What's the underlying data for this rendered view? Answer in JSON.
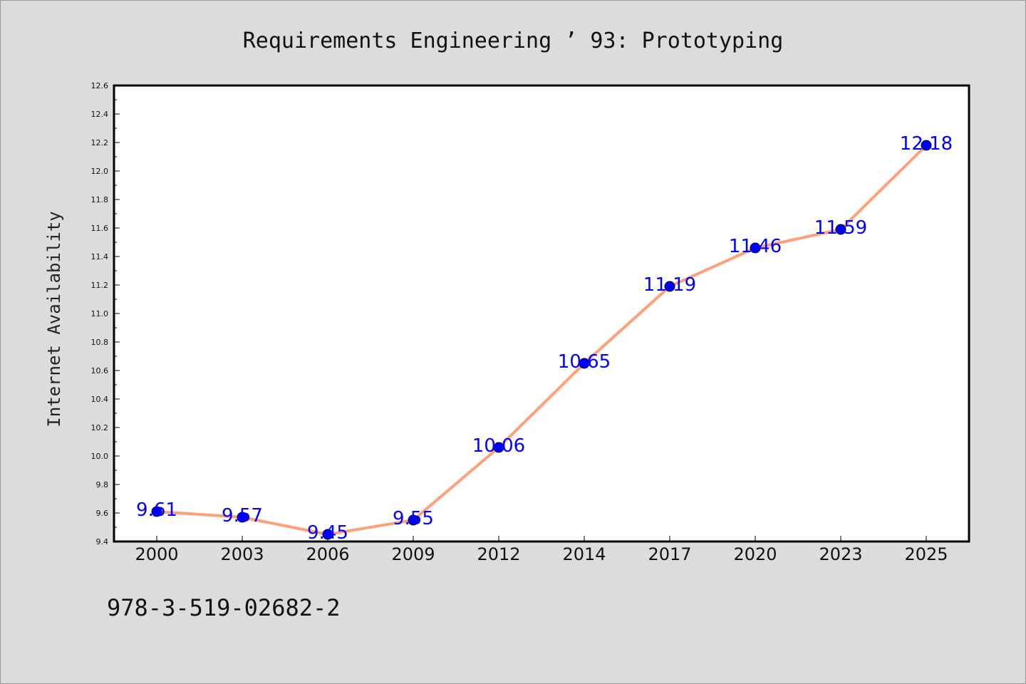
{
  "chart_data": {
    "type": "line",
    "title": "Requirements Engineering ’ 93: Prototyping",
    "xlabel": "",
    "ylabel": "Internet Availability",
    "categories": [
      "2000",
      "2003",
      "2006",
      "2009",
      "2012",
      "2014",
      "2017",
      "2020",
      "2023",
      "2025"
    ],
    "series": [
      {
        "values": [
          9.61,
          9.57,
          9.45,
          9.55,
          10.06,
          10.65,
          11.19,
          11.46,
          11.59,
          12.18
        ]
      }
    ],
    "ylim": [
      9.4,
      12.6
    ],
    "yticks": [
      "9.4",
      "9.6",
      "9.8",
      "10.0",
      "10.2",
      "10.4",
      "10.6",
      "10.8",
      "11.0",
      "11.2",
      "11.4",
      "11.6",
      "11.8",
      "12.0",
      "12.2",
      "12.4",
      "12.6"
    ],
    "data_labels": [
      "9.61",
      "9.57",
      "9.45",
      "9.55",
      "10.06",
      "10.65",
      "11.19",
      "11.46",
      "11.59",
      "12.18"
    ],
    "grid": false,
    "line_color": "#ffa07a",
    "marker_color": "#0000ff",
    "label_color": "#0000ff"
  },
  "footer_text": "978-3-519-02682-2"
}
